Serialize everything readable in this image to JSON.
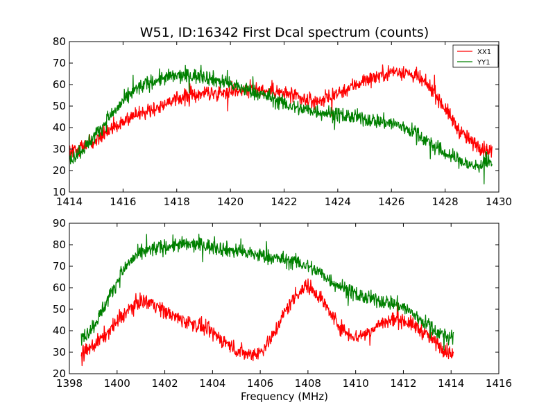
{
  "chart_data": [
    {
      "type": "line",
      "title": "W51, ID:16342 First Dcal spectrum (counts)",
      "xlabel": "",
      "ylabel": "",
      "xlim": [
        1414,
        1430
      ],
      "ylim": [
        10,
        80
      ],
      "xticks": [
        1414,
        1416,
        1418,
        1420,
        1422,
        1424,
        1426,
        1428,
        1430
      ],
      "yticks": [
        10,
        20,
        30,
        40,
        50,
        60,
        70,
        80
      ],
      "legend": {
        "location": "top-right",
        "entries": [
          "XX1",
          "YY1"
        ]
      },
      "grid": false,
      "series": [
        {
          "name": "XX1",
          "color": "#ff0000",
          "noise": 2.5,
          "x": [
            1414.0,
            1414.5,
            1415.0,
            1415.5,
            1416.0,
            1416.5,
            1417.0,
            1417.5,
            1418.0,
            1418.5,
            1419.0,
            1419.5,
            1420.0,
            1420.5,
            1421.0,
            1421.5,
            1422.0,
            1422.5,
            1423.0,
            1423.5,
            1424.0,
            1424.5,
            1425.0,
            1425.5,
            1426.0,
            1426.5,
            1427.0,
            1427.5,
            1428.0,
            1428.5,
            1429.0,
            1429.5,
            1429.75
          ],
          "values": [
            28,
            31,
            35,
            39,
            43,
            46,
            48,
            51,
            53,
            55,
            56,
            56,
            57,
            58,
            58,
            57,
            56,
            54,
            52,
            53,
            56,
            59,
            62,
            64,
            66,
            66,
            63,
            58,
            49,
            39,
            33,
            30,
            29
          ]
        },
        {
          "name": "YY1",
          "color": "#008000",
          "noise": 2.5,
          "x": [
            1414.0,
            1414.5,
            1415.0,
            1415.5,
            1416.0,
            1416.5,
            1417.0,
            1417.5,
            1418.0,
            1418.5,
            1419.0,
            1419.5,
            1420.0,
            1420.5,
            1421.0,
            1421.5,
            1422.0,
            1422.5,
            1423.0,
            1423.5,
            1424.0,
            1424.5,
            1425.0,
            1425.5,
            1426.0,
            1426.5,
            1427.0,
            1427.5,
            1428.0,
            1428.5,
            1429.0,
            1429.5,
            1429.75
          ],
          "values": [
            25,
            30,
            37,
            45,
            52,
            58,
            61,
            63,
            64,
            64,
            64,
            62,
            60,
            58,
            56,
            54,
            51,
            49,
            48,
            47,
            46,
            45,
            44,
            43,
            42,
            40,
            37,
            32,
            28,
            25,
            22,
            23,
            24
          ]
        }
      ]
    },
    {
      "type": "line",
      "title": "",
      "xlabel": "Frequency (MHz)",
      "ylabel": "",
      "xlim": [
        1398,
        1416
      ],
      "ylim": [
        20,
        90
      ],
      "xticks": [
        1398,
        1400,
        1402,
        1404,
        1406,
        1408,
        1410,
        1412,
        1414,
        1416
      ],
      "yticks": [
        20,
        30,
        40,
        50,
        60,
        70,
        80,
        90
      ],
      "grid": false,
      "series": [
        {
          "name": "XX1",
          "color": "#ff0000",
          "noise": 2.5,
          "x": [
            1398.5,
            1399.0,
            1399.5,
            1400.0,
            1400.5,
            1401.0,
            1401.5,
            1402.0,
            1402.5,
            1403.0,
            1403.5,
            1404.0,
            1404.5,
            1405.0,
            1405.5,
            1406.0,
            1406.5,
            1407.0,
            1407.5,
            1408.0,
            1408.5,
            1409.0,
            1409.5,
            1410.0,
            1410.5,
            1411.0,
            1411.5,
            1412.0,
            1412.5,
            1413.0,
            1413.5,
            1414.1
          ],
          "values": [
            29,
            33,
            38,
            44,
            50,
            54,
            53,
            49,
            46,
            44,
            42,
            39,
            35,
            31,
            29,
            30,
            37,
            48,
            57,
            61,
            56,
            47,
            40,
            37,
            39,
            43,
            45,
            45,
            42,
            38,
            33,
            29
          ]
        },
        {
          "name": "YY1",
          "color": "#008000",
          "noise": 2.5,
          "x": [
            1398.5,
            1399.0,
            1399.5,
            1400.0,
            1400.5,
            1401.0,
            1401.5,
            1402.0,
            1402.5,
            1403.0,
            1403.5,
            1404.0,
            1404.5,
            1405.0,
            1405.5,
            1406.0,
            1406.5,
            1407.0,
            1407.5,
            1408.0,
            1408.5,
            1409.0,
            1409.5,
            1410.0,
            1410.5,
            1411.0,
            1411.5,
            1412.0,
            1412.5,
            1413.0,
            1413.5,
            1414.1
          ],
          "values": [
            36,
            42,
            52,
            63,
            72,
            76,
            78,
            79,
            80,
            80,
            80,
            79,
            78,
            77,
            76,
            75,
            74,
            73,
            72,
            70,
            67,
            63,
            60,
            57,
            55,
            54,
            53,
            51,
            47,
            43,
            39,
            36
          ]
        }
      ]
    }
  ]
}
